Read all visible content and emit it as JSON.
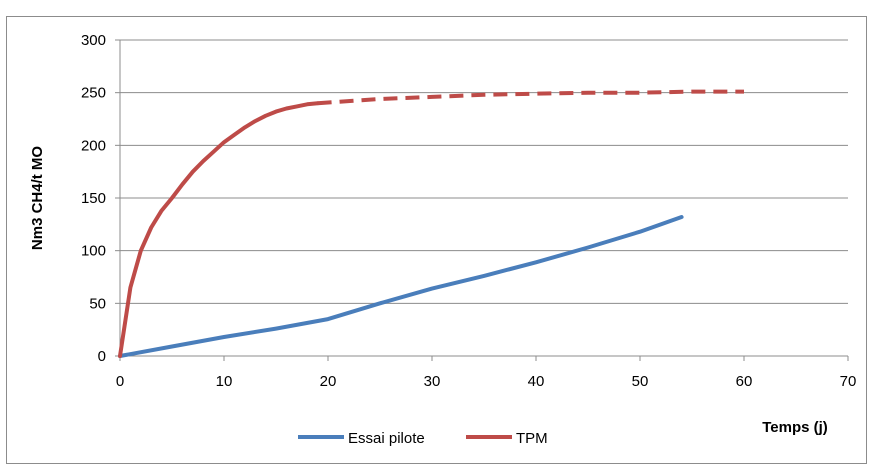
{
  "chart_data": {
    "type": "line",
    "title": "",
    "xlabel": "Temps (j)",
    "ylabel": "Nm3 CH4/t MO",
    "xlim": [
      0,
      70
    ],
    "ylim": [
      0,
      300
    ],
    "xticks": [
      0,
      10,
      20,
      30,
      40,
      50,
      60,
      70
    ],
    "yticks": [
      0,
      50,
      100,
      150,
      200,
      250,
      300
    ],
    "grid": "horizontal",
    "legend_position": "bottom",
    "series": [
      {
        "name": "Essai pilote",
        "color": "#4a7ebb",
        "style": "solid",
        "x": [
          0,
          5,
          10,
          15,
          20,
          25,
          30,
          35,
          40,
          45,
          50,
          54
        ],
        "y": [
          0,
          9,
          18,
          26,
          35,
          50,
          64,
          76,
          89,
          103,
          118,
          132
        ]
      },
      {
        "name": "TPM",
        "color": "#be4b48",
        "segments": [
          {
            "style": "solid",
            "x": [
              0,
              1,
              2,
              3,
              4,
              5,
              6,
              7,
              8,
              9,
              10,
              11,
              12,
              13,
              14,
              15,
              16,
              17,
              18,
              19
            ],
            "y": [
              0,
              65,
              100,
              122,
              138,
              150,
              163,
              175,
              185,
              194,
              203,
              210,
              217,
              223,
              228,
              232,
              235,
              237,
              239,
              240
            ]
          },
          {
            "style": "dashed",
            "x": [
              19,
              25,
              30,
              35,
              40,
              45,
              50,
              55,
              60
            ],
            "y": [
              240,
              244,
              246,
              248,
              249,
              250,
              250,
              251,
              251
            ]
          }
        ]
      }
    ]
  }
}
